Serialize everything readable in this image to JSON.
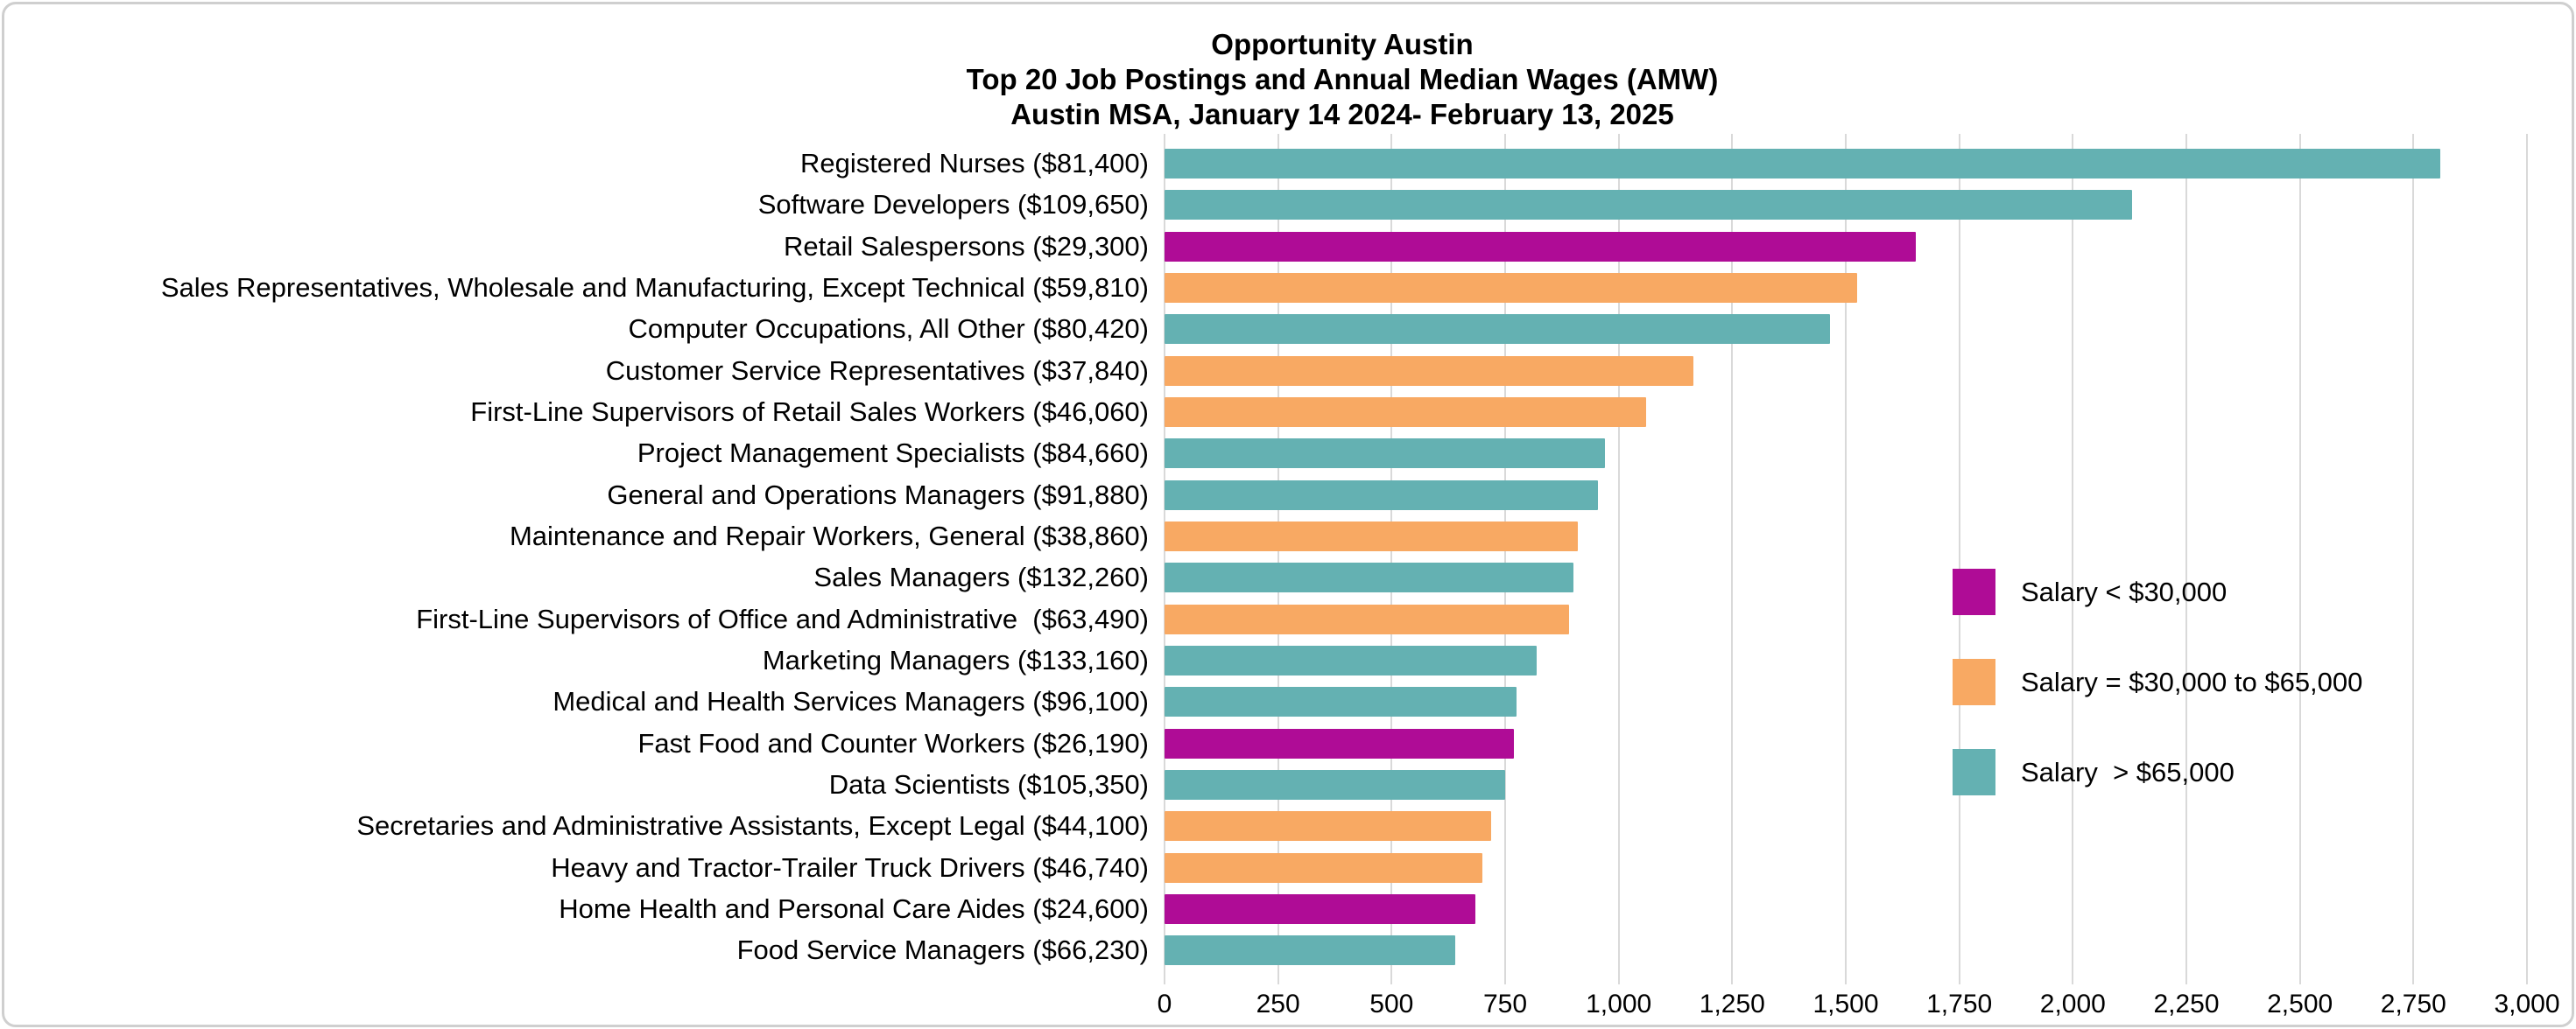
{
  "title": {
    "line1": "Opportunity Austin",
    "line2": "Top 20 Job Postings and Annual Median Wages (AMW)",
    "line3": "Austin MSA, January 14 2024- February 13, 2025"
  },
  "colors": {
    "magenta": "#AF0C96",
    "orange": "#F8A963",
    "teal": "#64B1B2",
    "gridline": "#D9D9D9",
    "text": "#000000",
    "card_border": "#CFCFCF"
  },
  "legend": {
    "items": [
      {
        "label": "Salary < $30,000",
        "color_key": "magenta"
      },
      {
        "label": "Salary = $30,000 to $65,000",
        "color_key": "orange"
      },
      {
        "label": "Salary  > $65,000",
        "color_key": "teal"
      }
    ],
    "position": "right-middle"
  },
  "chart_data": {
    "type": "bar",
    "orientation": "horizontal",
    "title": "Opportunity Austin\nTop 20 Job Postings and Annual Median Wages (AMW)\nAustin MSA, January 14 2024- February 13, 2025",
    "xlabel": "",
    "ylabel": "",
    "xlim": [
      0,
      3000
    ],
    "grid": true,
    "x_tick_labels": [
      "0",
      "250",
      "500",
      "750",
      "1,000",
      "1,250",
      "1,500",
      "1,750",
      "2,000",
      "2,250",
      "2,500",
      "2,750",
      "3,000"
    ],
    "x_tick_values": [
      0,
      250,
      500,
      750,
      1000,
      1250,
      1500,
      1750,
      2000,
      2250,
      2500,
      2750,
      3000
    ],
    "categories": [
      "Registered Nurses ($81,400)",
      "Software Developers ($109,650)",
      "Retail Salespersons ($29,300)",
      "Sales Representatives, Wholesale and Manufacturing, Except Technical ($59,810)",
      "Computer Occupations, All Other ($80,420)",
      "Customer Service Representatives ($37,840)",
      "First-Line Supervisors of Retail Sales Workers ($46,060)",
      "Project Management Specialists ($84,660)",
      "General and Operations Managers ($91,880)",
      "Maintenance and Repair Workers, General ($38,860)",
      "Sales Managers ($132,260)",
      "First-Line Supervisors of Office and Administrative  ($63,490)",
      "Marketing Managers ($133,160)",
      "Medical and Health Services Managers ($96,100)",
      "Fast Food and Counter Workers ($26,190)",
      "Data Scientists ($105,350)",
      "Secretaries and Administrative Assistants, Except Legal ($44,100)",
      "Heavy and Tractor-Trailer Truck Drivers ($46,740)",
      "Home Health and Personal Care Aides ($24,600)",
      "Food Service Managers ($66,230)"
    ],
    "values": [
      2810,
      2130,
      1655,
      1525,
      1465,
      1165,
      1060,
      970,
      955,
      910,
      900,
      890,
      820,
      775,
      770,
      750,
      720,
      700,
      685,
      640
    ],
    "bar_color_keys": [
      "teal",
      "teal",
      "magenta",
      "orange",
      "teal",
      "orange",
      "orange",
      "teal",
      "teal",
      "orange",
      "teal",
      "orange",
      "teal",
      "teal",
      "magenta",
      "teal",
      "orange",
      "orange",
      "magenta",
      "teal"
    ],
    "annual_median_wages": [
      81400,
      109650,
      29300,
      59810,
      80420,
      37840,
      46060,
      84660,
      91880,
      38860,
      132260,
      63490,
      133160,
      96100,
      26190,
      105350,
      44100,
      46740,
      24600,
      66230
    ],
    "legend_entries": [
      "Salary < $30,000",
      "Salary = $30,000 to $65,000",
      "Salary  > $65,000"
    ]
  }
}
